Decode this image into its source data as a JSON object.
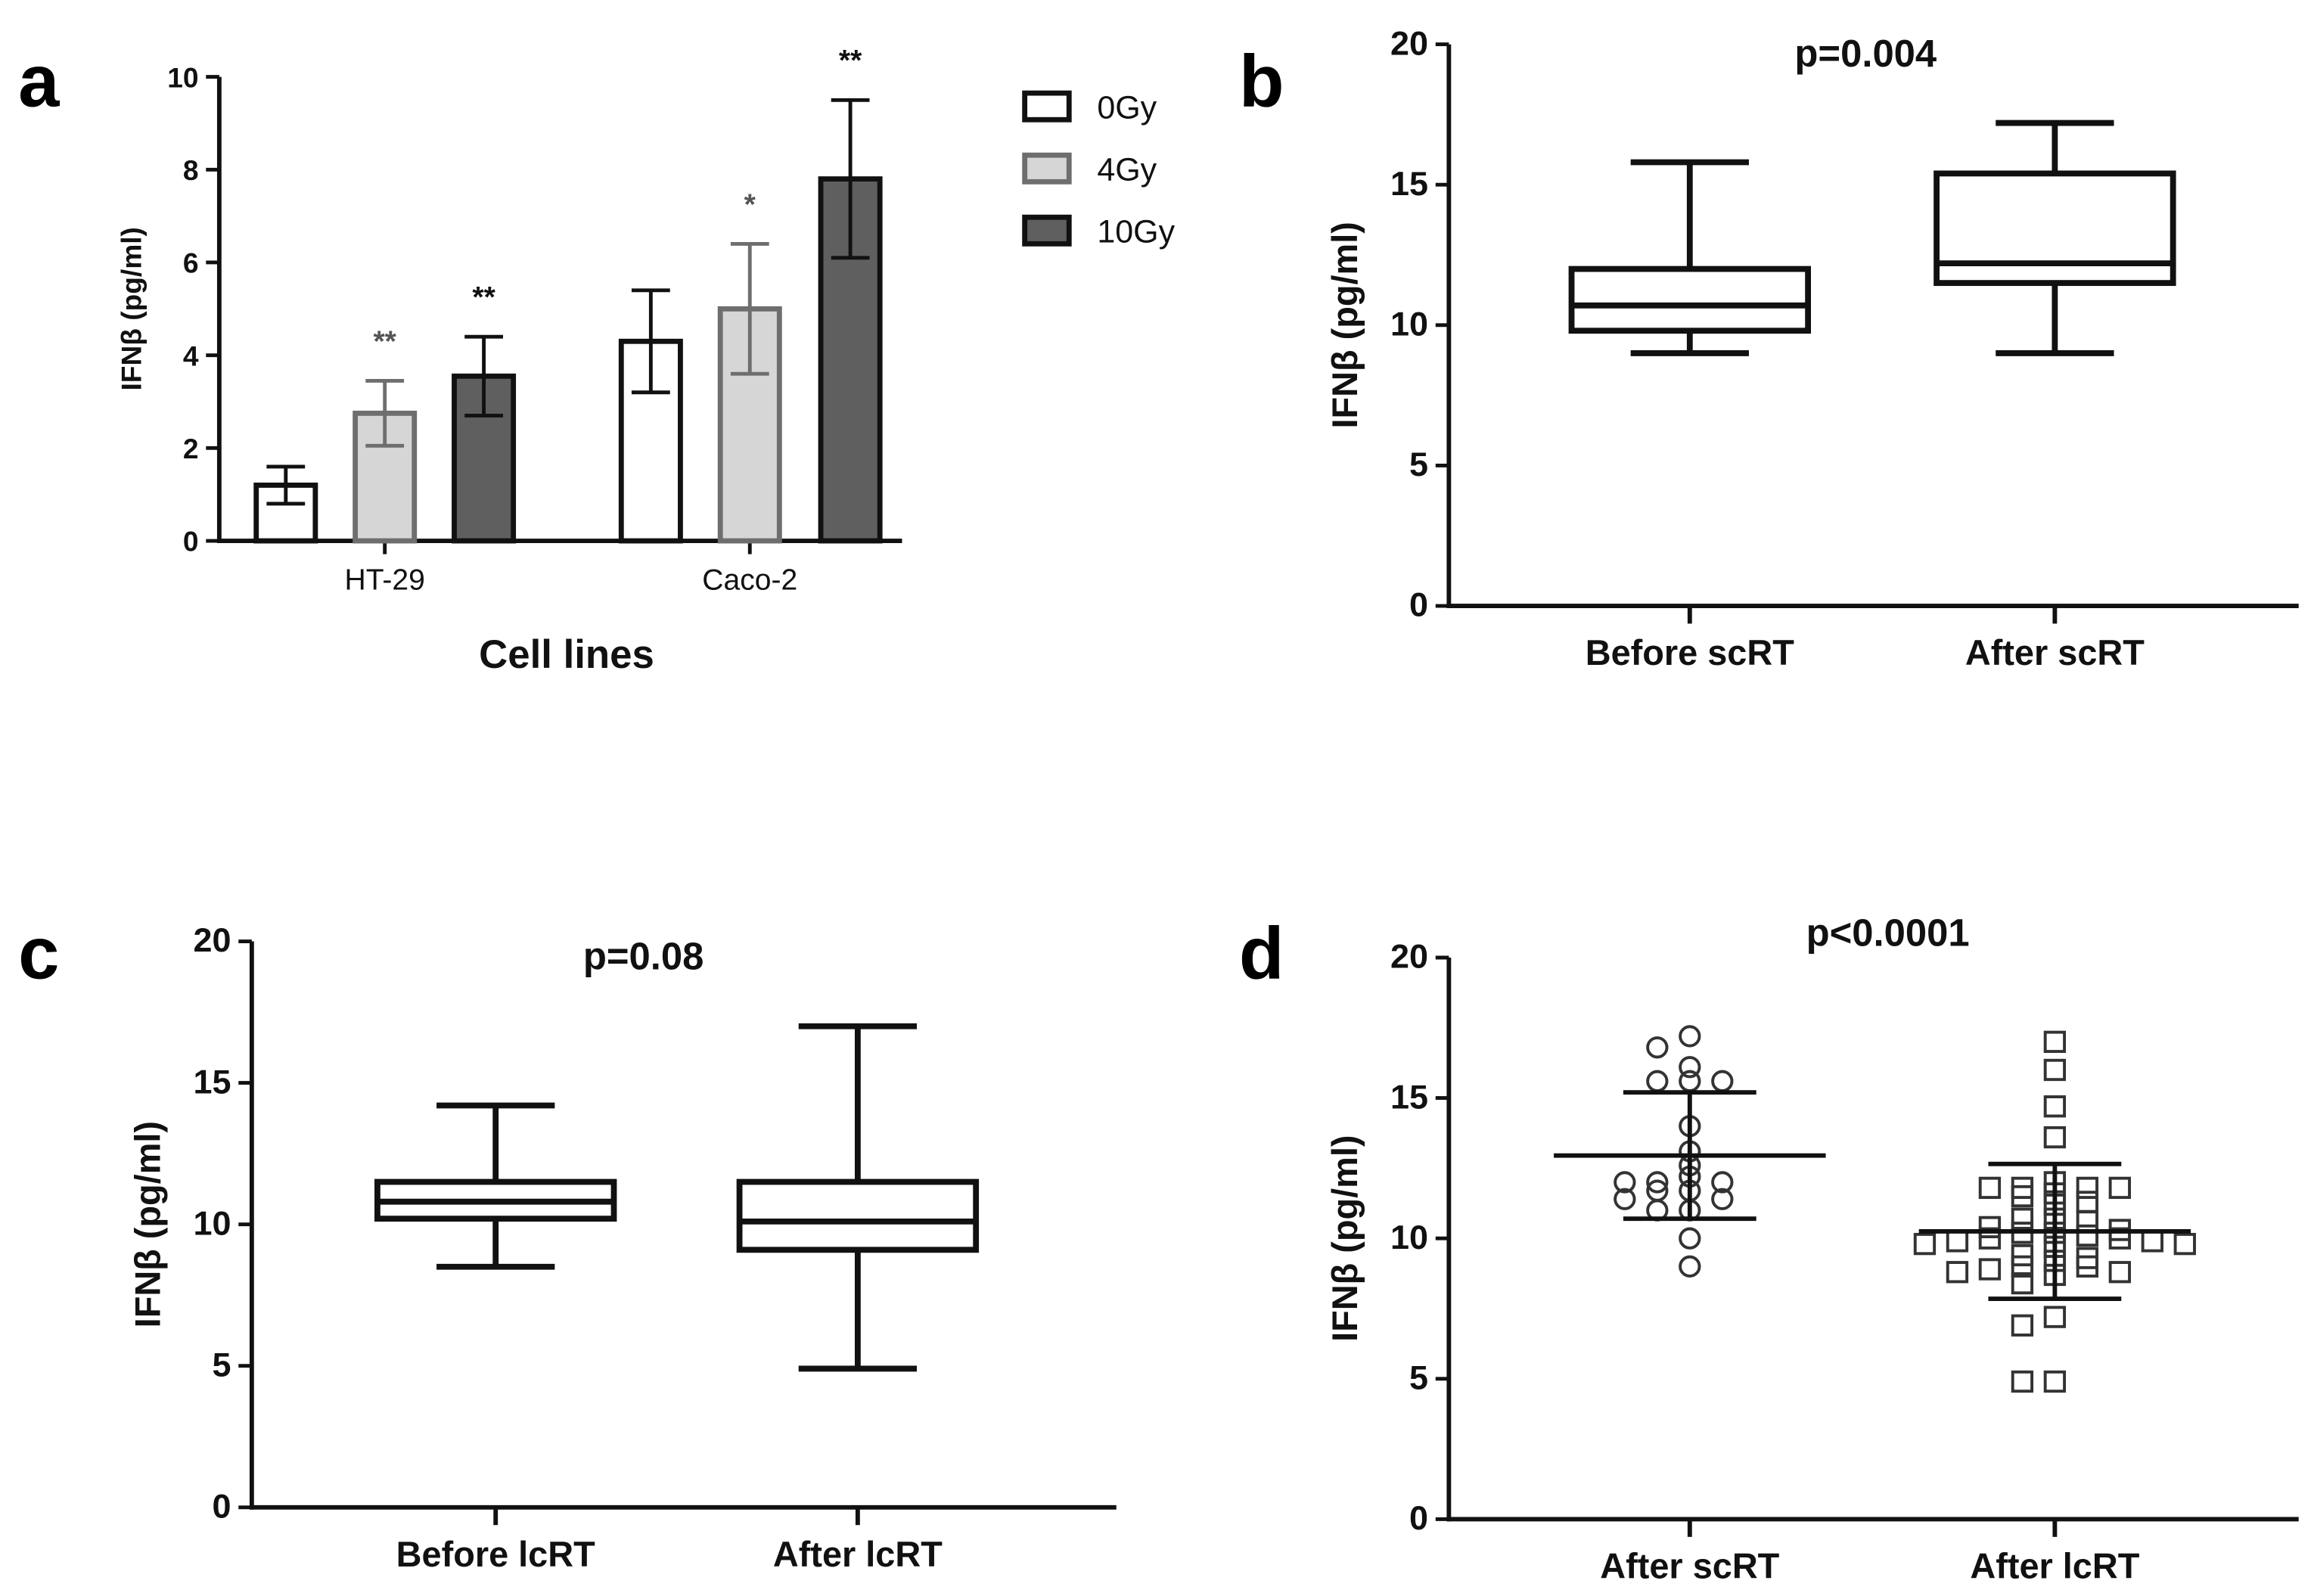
{
  "chart_data": [
    {
      "panel": "a",
      "type": "bar",
      "ylabel": "IFNβ (pg/ml)",
      "xlabel": "Cell lines",
      "ylim": [
        0,
        10
      ],
      "yticks": [
        "0",
        "2",
        "4",
        "6",
        "8",
        "10"
      ],
      "categories": [
        "HT-29",
        "Caco-2"
      ],
      "series": [
        {
          "name": "0Gy",
          "color": "#ffffff",
          "edge": "#111111",
          "values": [
            1.2,
            4.3
          ],
          "err": [
            0.4,
            1.1
          ],
          "sig": [
            "",
            ""
          ]
        },
        {
          "name": "4Gy",
          "color": "#d6d6d6",
          "edge": "#6e6e6e",
          "values": [
            2.75,
            5.0
          ],
          "err": [
            0.7,
            1.4
          ],
          "sig": [
            "**",
            "*"
          ]
        },
        {
          "name": "10Gy",
          "color": "#5f5f5f",
          "edge": "#111111",
          "values": [
            3.55,
            7.8
          ],
          "err": [
            0.85,
            1.7
          ],
          "sig": [
            "**",
            "**"
          ]
        }
      ]
    },
    {
      "panel": "b",
      "type": "box",
      "title": "p=0.004",
      "ylabel": "IFNβ (pg/ml)",
      "ylim": [
        0,
        20
      ],
      "yticks": [
        "0",
        "5",
        "10",
        "15",
        "20"
      ],
      "categories": [
        "Before scRT",
        "After scRT"
      ],
      "boxes": [
        {
          "min": 9.0,
          "q1": 9.8,
          "median": 10.7,
          "q3": 12.0,
          "max": 15.8
        },
        {
          "min": 9.0,
          "q1": 11.5,
          "median": 12.2,
          "q3": 15.4,
          "max": 17.2
        }
      ]
    },
    {
      "panel": "c",
      "type": "box",
      "title": "p=0.08",
      "ylabel": "IFNβ (pg/ml)",
      "ylim": [
        0,
        20
      ],
      "yticks": [
        "0",
        "5",
        "10",
        "15",
        "20"
      ],
      "categories": [
        "Before lcRT",
        "After lcRT"
      ],
      "boxes": [
        {
          "min": 8.5,
          "q1": 10.2,
          "median": 10.8,
          "q3": 11.5,
          "max": 14.2
        },
        {
          "min": 4.9,
          "q1": 9.1,
          "median": 10.1,
          "q3": 11.5,
          "max": 17.0
        }
      ]
    },
    {
      "panel": "d",
      "type": "scatter",
      "title": "p<0.0001",
      "ylabel": "IFNβ (pg/ml)",
      "ylim": [
        0,
        20
      ],
      "yticks": [
        "0",
        "5",
        "10",
        "15",
        "20"
      ],
      "categories": [
        "After scRT",
        "After lcRT"
      ],
      "groups": [
        {
          "marker": "circle",
          "mean": 12.95,
          "sd_low": 10.7,
          "sd_high": 15.2,
          "values": [
            17.2,
            16.8,
            16.1,
            15.6,
            15.6,
            15.6,
            14.0,
            13.1,
            12.6,
            12.2,
            12.0,
            12.0,
            12.0,
            11.7,
            11.7,
            11.4,
            11.4,
            11.0,
            11.0,
            10.0,
            9.0
          ]
        },
        {
          "marker": "square",
          "mean": 10.25,
          "sd_low": 7.85,
          "sd_high": 12.65,
          "values": [
            17.0,
            16.0,
            14.7,
            13.6,
            12.0,
            11.8,
            11.8,
            11.8,
            11.8,
            11.6,
            11.5,
            11.3,
            11.2,
            10.7,
            10.7,
            10.6,
            10.4,
            10.3,
            10.2,
            10.2,
            10.1,
            10.0,
            10.0,
            9.9,
            9.9,
            9.8,
            9.8,
            9.7,
            9.4,
            9.3,
            9.2,
            9.0,
            9.0,
            8.9,
            8.8,
            8.8,
            8.7,
            8.4,
            7.2,
            6.9,
            4.9,
            4.9
          ]
        }
      ]
    }
  ]
}
